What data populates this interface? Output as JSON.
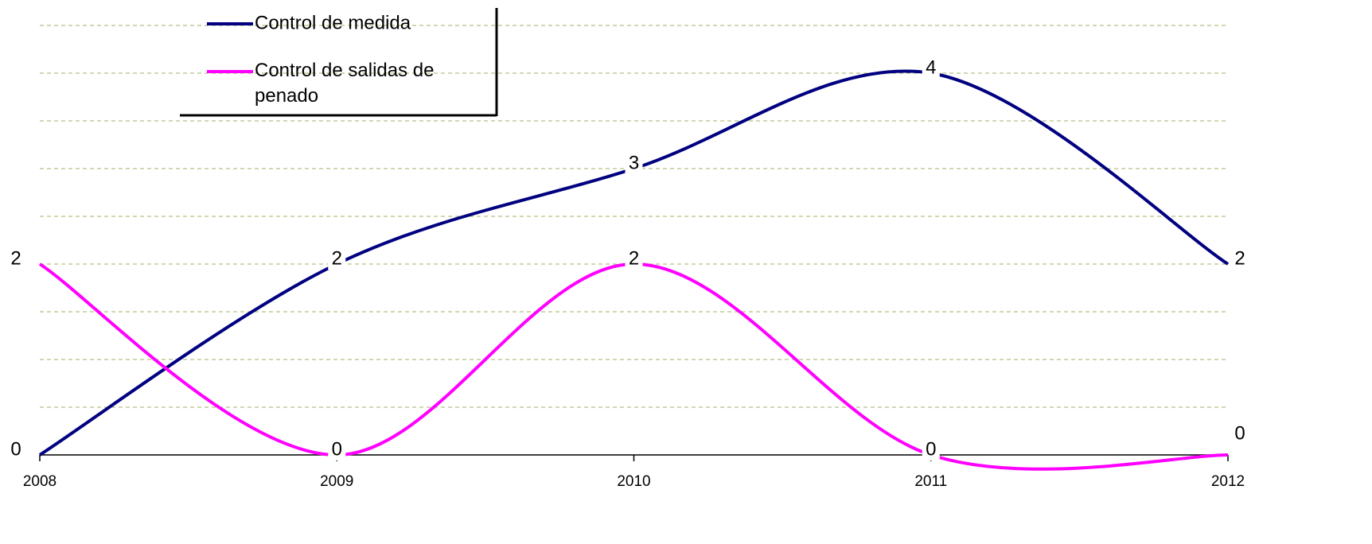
{
  "chart_data": {
    "type": "line",
    "categories": [
      "2008",
      "2009",
      "2010",
      "2011",
      "2012"
    ],
    "series": [
      {
        "name": "Control de medida",
        "color": "#000080",
        "values": [
          0,
          2,
          3,
          4,
          2
        ]
      },
      {
        "name": "Control de salidas de penado",
        "color": "#ff00ff",
        "values": [
          2,
          0,
          2,
          0,
          0
        ]
      }
    ],
    "ylim": [
      0,
      4.5
    ],
    "yticks": [
      0,
      0.5,
      1,
      1.5,
      2,
      2.5,
      3,
      3.5,
      4,
      4.5
    ],
    "grid": true
  }
}
